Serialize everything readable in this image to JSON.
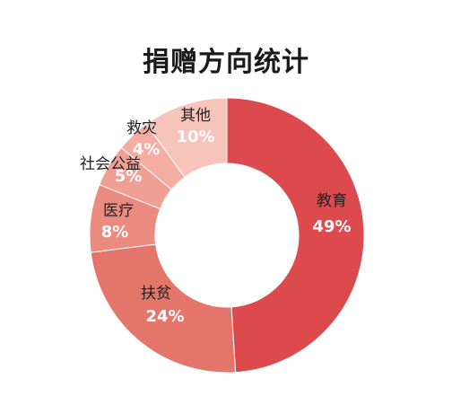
{
  "chart_data": {
    "type": "pie",
    "variant": "donut",
    "title": "捐赠方向统计",
    "slices": [
      {
        "name": "教育",
        "percent_label": "49%",
        "value": 49,
        "color": "#dc4a4d"
      },
      {
        "name": "扶贫",
        "percent_label": "24%",
        "value": 24,
        "color": "#e4756b"
      },
      {
        "name": "医疗",
        "percent_label": "8%",
        "value": 8,
        "color": "#eb8b80"
      },
      {
        "name": "社会公益",
        "percent_label": "5%",
        "value": 5,
        "color": "#f09f94"
      },
      {
        "name": "救灾",
        "percent_label": "4%",
        "value": 4,
        "color": "#f3ada3"
      },
      {
        "name": "其他",
        "percent_label": "10%",
        "value": 10,
        "color": "#f7c4bc"
      }
    ],
    "start_at": "top",
    "direction": "clockwise"
  }
}
